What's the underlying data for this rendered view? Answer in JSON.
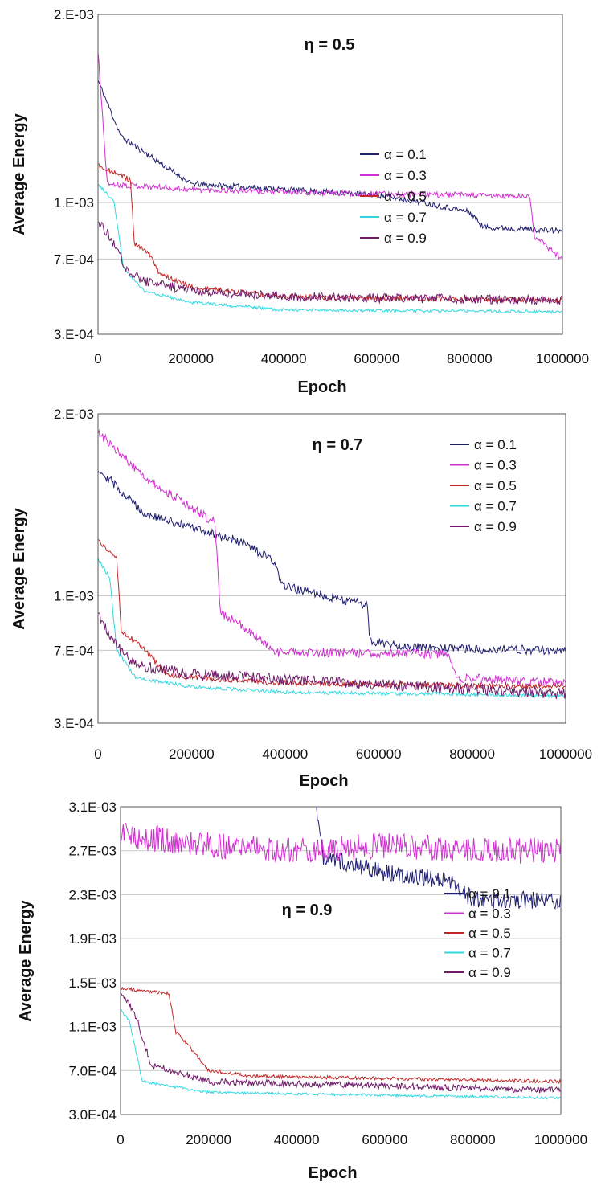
{
  "figure": {
    "background": "#ffffff"
  },
  "legend_colors": {
    "a01": "#1f1f70",
    "a03": "#d030d0",
    "a05": "#c02828",
    "a07": "#30d8e0",
    "a09": "#701a6a"
  },
  "chart_data": [
    {
      "type": "line",
      "title": "η = 0.5",
      "xlabel": "Epoch",
      "ylabel": "Average Energy",
      "xlim": [
        0,
        1000000
      ],
      "xticks": [
        "0",
        "200000",
        "400000",
        "600000",
        "800000",
        "1000000"
      ],
      "yticks": [
        "3.E-04",
        "7.E-04",
        "1.E-03",
        "2.E-03"
      ],
      "ytick_values": [
        0.0003,
        0.0007,
        0.001,
        0.002
      ],
      "ylim": [
        0.0003,
        0.002
      ],
      "grid": "horizontal",
      "legend_position": "center-right",
      "series": [
        {
          "name": "α = 0.1",
          "color": "#1f1f70",
          "noise": 1.5e-05,
          "points": [
            [
              0,
              0.00165
            ],
            [
              50000,
              0.00135
            ],
            [
              200000,
              0.0011
            ],
            [
              400000,
              0.00107
            ],
            [
              600000,
              0.00104
            ],
            [
              700000,
              0.001
            ],
            [
              800000,
              0.00095
            ],
            [
              830000,
              0.00087
            ],
            [
              1000000,
              0.00085
            ]
          ]
        },
        {
          "name": "α = 0.3",
          "color": "#d030d0",
          "noise": 1.5e-05,
          "points": [
            [
              0,
              0.0018
            ],
            [
              20000,
              0.0011
            ],
            [
              200000,
              0.00107
            ],
            [
              500000,
              0.00105
            ],
            [
              800000,
              0.00104
            ],
            [
              930000,
              0.00103
            ],
            [
              940000,
              0.00082
            ],
            [
              1000000,
              0.0007
            ]
          ]
        },
        {
          "name": "α = 0.5",
          "color": "#c02828",
          "noise": 1.3e-05,
          "points": [
            [
              0,
              0.0012
            ],
            [
              70000,
              0.00112
            ],
            [
              78000,
              0.00078
            ],
            [
              110000,
              0.00073
            ],
            [
              130000,
              0.00063
            ],
            [
              200000,
              0.00055
            ],
            [
              400000,
              0.0005
            ],
            [
              1000000,
              0.00048
            ]
          ]
        },
        {
          "name": "α = 0.7",
          "color": "#30d8e0",
          "noise": 8e-06,
          "points": [
            [
              0,
              0.0011
            ],
            [
              35000,
              0.001
            ],
            [
              55000,
              0.00065
            ],
            [
              100000,
              0.00053
            ],
            [
              200000,
              0.00047
            ],
            [
              400000,
              0.00043
            ],
            [
              1000000,
              0.00042
            ]
          ]
        },
        {
          "name": "α = 0.9",
          "color": "#701a6a",
          "noise": 2.5e-05,
          "points": [
            [
              0,
              0.0009
            ],
            [
              30000,
              0.0008
            ],
            [
              60000,
              0.00065
            ],
            [
              100000,
              0.00058
            ],
            [
              200000,
              0.00053
            ],
            [
              400000,
              0.0005
            ],
            [
              1000000,
              0.00048
            ]
          ]
        }
      ]
    },
    {
      "type": "line",
      "title": "η = 0.7",
      "xlabel": "Epoch",
      "ylabel": "Average Energy",
      "xlim": [
        0,
        1000000
      ],
      "xticks": [
        "0",
        "200000",
        "400000",
        "600000",
        "800000",
        "1000000"
      ],
      "yticks": [
        "3.E-04",
        "7.E-04",
        "1.E-03",
        "2.E-03"
      ],
      "ytick_values": [
        0.0003,
        0.0007,
        0.001,
        0.002
      ],
      "ylim": [
        0.0003,
        0.002
      ],
      "grid": "horizontal",
      "legend_position": "top-right",
      "series": [
        {
          "name": "α = 0.1",
          "color": "#1f1f70",
          "noise": 2.5e-05,
          "points": [
            [
              0,
              0.0017
            ],
            [
              100000,
              0.00145
            ],
            [
              300000,
              0.0013
            ],
            [
              370000,
              0.0012
            ],
            [
              400000,
              0.00105
            ],
            [
              575000,
              0.00095
            ],
            [
              582000,
              0.00075
            ],
            [
              700000,
              0.00071
            ],
            [
              1000000,
              0.0007
            ]
          ]
        },
        {
          "name": "α = 0.3",
          "color": "#d030d0",
          "noise": 2.5e-05,
          "points": [
            [
              0,
              0.0019
            ],
            [
              100000,
              0.00165
            ],
            [
              250000,
              0.0014
            ],
            [
              262000,
              0.0009
            ],
            [
              300000,
              0.00085
            ],
            [
              380000,
              0.00069
            ],
            [
              750000,
              0.00068
            ],
            [
              765000,
              0.00055
            ],
            [
              1000000,
              0.00052
            ]
          ]
        },
        {
          "name": "α = 0.5",
          "color": "#c02828",
          "noise": 1.5e-05,
          "points": [
            [
              0,
              0.0013
            ],
            [
              40000,
              0.0012
            ],
            [
              50000,
              0.0008
            ],
            [
              90000,
              0.00073
            ],
            [
              150000,
              0.00056
            ],
            [
              400000,
              0.00052
            ],
            [
              1000000,
              0.0005
            ]
          ]
        },
        {
          "name": "α = 0.7",
          "color": "#30d8e0",
          "noise": 1e-05,
          "points": [
            [
              0,
              0.0012
            ],
            [
              25000,
              0.0011
            ],
            [
              40000,
              0.0007
            ],
            [
              80000,
              0.00055
            ],
            [
              200000,
              0.0005
            ],
            [
              400000,
              0.00047
            ],
            [
              1000000,
              0.00045
            ]
          ]
        },
        {
          "name": "α = 0.9",
          "color": "#701a6a",
          "noise": 3e-05,
          "points": [
            [
              0,
              0.0009
            ],
            [
              30000,
              0.00075
            ],
            [
              80000,
              0.00062
            ],
            [
              200000,
              0.00057
            ],
            [
              400000,
              0.00054
            ],
            [
              1000000,
              0.00046
            ]
          ]
        }
      ]
    },
    {
      "type": "line",
      "title": "η = 0.9",
      "xlabel": "Epoch",
      "ylabel": "Average Energy",
      "xlim": [
        0,
        1000000
      ],
      "xticks": [
        "0",
        "200000",
        "400000",
        "600000",
        "800000",
        "1000000"
      ],
      "yticks": [
        "3.0E-04",
        "7.0E-04",
        "1.1E-03",
        "1.5E-03",
        "1.9E-03",
        "2.3E-03",
        "2.7E-03",
        "3.1E-03"
      ],
      "ytick_values": [
        0.0003,
        0.0007,
        0.0011,
        0.0015,
        0.0019,
        0.0023,
        0.0027,
        0.0031
      ],
      "ylim": [
        0.0003,
        0.0031
      ],
      "grid": "horizontal",
      "legend_position": "center-right",
      "series": [
        {
          "name": "α = 0.1",
          "color": "#1f1f70",
          "noise": 8e-05,
          "points": [
            [
              445000,
              0.0031
            ],
            [
              460000,
              0.00265
            ],
            [
              600000,
              0.0025
            ],
            [
              700000,
              0.00245
            ],
            [
              760000,
              0.0024
            ],
            [
              800000,
              0.00225
            ],
            [
              1000000,
              0.00225
            ]
          ]
        },
        {
          "name": "α = 0.3",
          "color": "#d030d0",
          "noise": 0.00012,
          "points": [
            [
              0,
              0.00285
            ],
            [
              200000,
              0.00275
            ],
            [
              400000,
              0.0027
            ],
            [
              600000,
              0.00275
            ],
            [
              800000,
              0.0027
            ],
            [
              1000000,
              0.0027
            ]
          ]
        },
        {
          "name": "α = 0.5",
          "color": "#c02828",
          "noise": 1.5e-05,
          "points": [
            [
              0,
              0.00145
            ],
            [
              110000,
              0.0014
            ],
            [
              125000,
              0.00105
            ],
            [
              150000,
              0.00095
            ],
            [
              200000,
              0.0007
            ],
            [
              300000,
              0.00065
            ],
            [
              1000000,
              0.0006
            ]
          ]
        },
        {
          "name": "α = 0.7",
          "color": "#30d8e0",
          "noise": 1.2e-05,
          "points": [
            [
              0,
              0.00125
            ],
            [
              20000,
              0.00115
            ],
            [
              50000,
              0.0006
            ],
            [
              200000,
              0.0005
            ],
            [
              1000000,
              0.00045
            ]
          ]
        },
        {
          "name": "α = 0.9",
          "color": "#701a6a",
          "noise": 3e-05,
          "points": [
            [
              0,
              0.0014
            ],
            [
              30000,
              0.00125
            ],
            [
              70000,
              0.00075
            ],
            [
              200000,
              0.0006
            ],
            [
              1000000,
              0.00052
            ]
          ]
        }
      ]
    }
  ]
}
